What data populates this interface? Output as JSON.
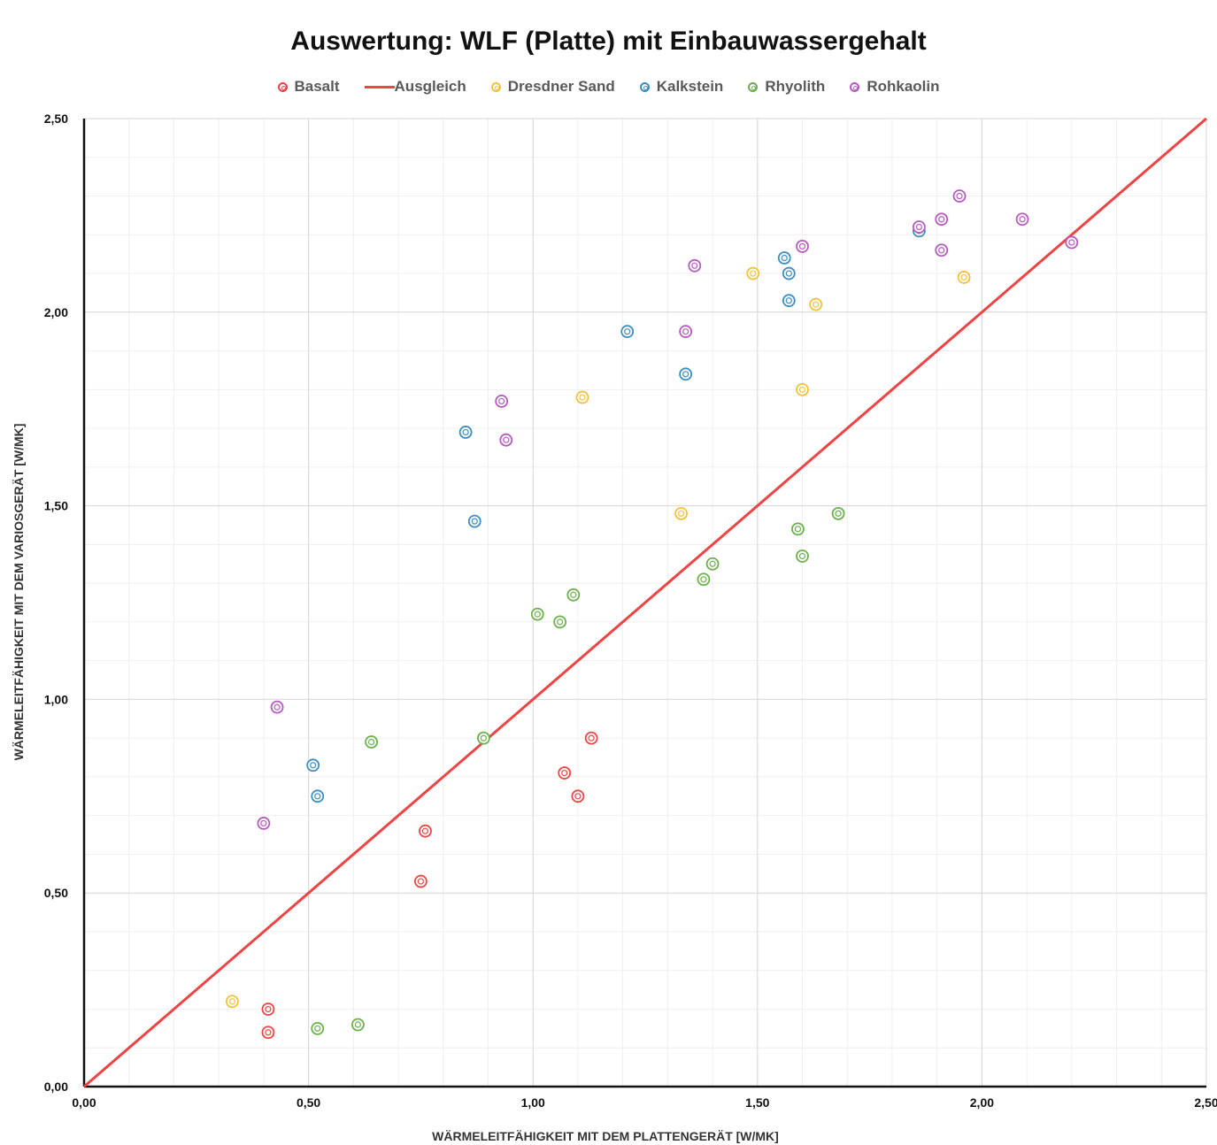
{
  "chart_data": {
    "type": "scatter",
    "title": "Auswertung: WLF (Platte) mit Einbauwassergehalt",
    "xlabel": "WÄRMELEITFÄHIGKEIT MIT DEM PLATTENGERÄT [W/MK]",
    "ylabel": "WÄRMELEITFÄHIGKEIT MIT DEM VARIOSGERÄT [W/MK]",
    "xlim": [
      0,
      2.5
    ],
    "ylim": [
      0,
      2.5
    ],
    "x_ticks": [
      "0,00",
      "0,50",
      "1,00",
      "1,50",
      "2,00",
      "2,50"
    ],
    "y_ticks": [
      "0,00",
      "0,50",
      "1,00",
      "1,50",
      "2,00",
      "2,50"
    ],
    "grid": true,
    "legend_position": "top",
    "series": [
      {
        "name": "Basalt",
        "kind": "scatter",
        "color": "#ee4444",
        "points": [
          [
            0.41,
            0.2
          ],
          [
            0.41,
            0.14
          ],
          [
            0.75,
            0.53
          ],
          [
            0.76,
            0.66
          ],
          [
            1.07,
            0.81
          ],
          [
            1.1,
            0.75
          ],
          [
            1.13,
            0.9
          ]
        ]
      },
      {
        "name": "Ausgleich",
        "kind": "line",
        "color": "#ee4444",
        "points": [
          [
            0,
            0
          ],
          [
            2.5,
            2.5
          ]
        ]
      },
      {
        "name": "Dresdner Sand",
        "kind": "scatter",
        "color": "#f5c13a",
        "points": [
          [
            0.33,
            0.22
          ],
          [
            1.11,
            1.78
          ],
          [
            1.33,
            1.48
          ],
          [
            1.49,
            2.1
          ],
          [
            1.6,
            1.8
          ],
          [
            1.63,
            2.02
          ],
          [
            1.96,
            2.09
          ]
        ]
      },
      {
        "name": "Kalkstein",
        "kind": "scatter",
        "color": "#3b8ec2",
        "points": [
          [
            0.51,
            0.83
          ],
          [
            0.52,
            0.75
          ],
          [
            0.85,
            1.69
          ],
          [
            0.87,
            1.46
          ],
          [
            1.21,
            1.95
          ],
          [
            1.34,
            1.84
          ],
          [
            1.56,
            2.14
          ],
          [
            1.57,
            2.1
          ],
          [
            1.57,
            2.03
          ],
          [
            1.86,
            2.21
          ]
        ]
      },
      {
        "name": "Rhyolith",
        "kind": "scatter",
        "color": "#6ab04c",
        "points": [
          [
            0.52,
            0.15
          ],
          [
            0.61,
            0.16
          ],
          [
            0.64,
            0.89
          ],
          [
            0.89,
            0.9
          ],
          [
            1.01,
            1.22
          ],
          [
            1.06,
            1.2
          ],
          [
            1.09,
            1.27
          ],
          [
            1.38,
            1.31
          ],
          [
            1.4,
            1.35
          ],
          [
            1.59,
            1.44
          ],
          [
            1.6,
            1.37
          ],
          [
            1.68,
            1.48
          ]
        ]
      },
      {
        "name": "Rohkaolin",
        "kind": "scatter",
        "color": "#b55bc0",
        "points": [
          [
            0.4,
            0.68
          ],
          [
            0.43,
            0.98
          ],
          [
            0.93,
            1.77
          ],
          [
            0.94,
            1.67
          ],
          [
            1.34,
            1.95
          ],
          [
            1.36,
            2.12
          ],
          [
            1.6,
            2.17
          ],
          [
            1.86,
            2.22
          ],
          [
            1.91,
            2.24
          ],
          [
            1.91,
            2.16
          ],
          [
            1.95,
            2.3
          ],
          [
            2.09,
            2.24
          ],
          [
            2.2,
            2.18
          ]
        ]
      }
    ]
  }
}
